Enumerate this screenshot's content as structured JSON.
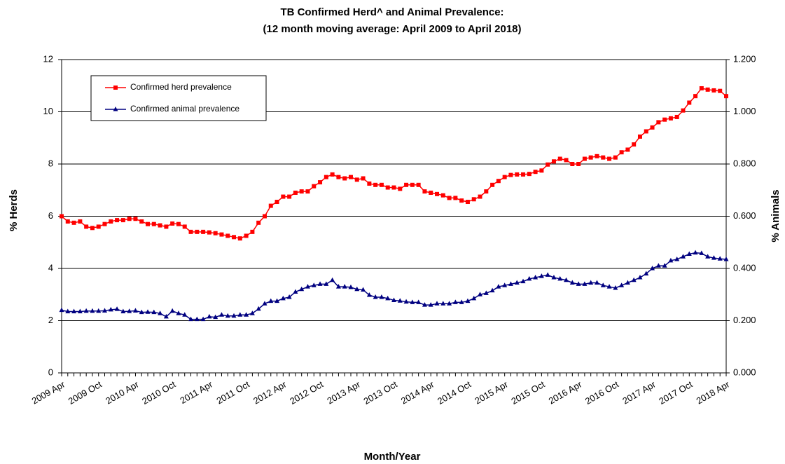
{
  "chart_data": {
    "type": "line",
    "title": "TB Confirmed Herd^ and Animal Prevalence:",
    "subtitle": "(12 month moving average: April 2009 to April 2018)",
    "x_label": "Month/Year",
    "y_label": "% Herds",
    "y2_label": "% Animals",
    "categories": [
      "2009 Apr",
      null,
      null,
      null,
      null,
      null,
      "2009 Oct",
      null,
      null,
      null,
      null,
      null,
      "2010 Apr",
      null,
      null,
      null,
      null,
      null,
      "2010 Oct",
      null,
      null,
      null,
      null,
      null,
      "2011 Apr",
      null,
      null,
      null,
      null,
      null,
      "2011 Oct",
      null,
      null,
      null,
      null,
      null,
      "2012 Apr",
      null,
      null,
      null,
      null,
      null,
      "2012 Oct",
      null,
      null,
      null,
      null,
      null,
      "2013 Apr",
      null,
      null,
      null,
      null,
      null,
      "2013 Oct",
      null,
      null,
      null,
      null,
      null,
      "2014 Apr",
      null,
      null,
      null,
      null,
      null,
      "2014 Oct",
      null,
      null,
      null,
      null,
      null,
      "2015 Apr",
      null,
      null,
      null,
      null,
      null,
      "2015 Oct",
      null,
      null,
      null,
      null,
      null,
      "2016 Apr",
      null,
      null,
      null,
      null,
      null,
      "2016 Oct",
      null,
      null,
      null,
      null,
      null,
      "2017 Apr",
      null,
      null,
      null,
      null,
      null,
      "2017 Oct",
      null,
      null,
      null,
      null,
      null,
      "2018 Apr"
    ],
    "series": [
      {
        "name": "Confirmed herd prevalence",
        "color": "#ff0000",
        "marker": "square",
        "values": [
          6.0,
          5.8,
          5.75,
          5.8,
          5.6,
          5.55,
          5.6,
          5.7,
          5.8,
          5.85,
          5.85,
          5.9,
          5.9,
          5.8,
          5.7,
          5.7,
          5.65,
          5.6,
          5.72,
          5.7,
          5.6,
          5.4,
          5.4,
          5.4,
          5.38,
          5.35,
          5.3,
          5.25,
          5.2,
          5.15,
          5.25,
          5.4,
          5.75,
          6.0,
          6.4,
          6.55,
          6.75,
          6.75,
          6.9,
          6.95,
          6.95,
          7.15,
          7.3,
          7.5,
          7.6,
          7.5,
          7.45,
          7.5,
          7.4,
          7.45,
          7.25,
          7.2,
          7.2,
          7.1,
          7.1,
          7.05,
          7.2,
          7.2,
          7.2,
          6.95,
          6.9,
          6.85,
          6.8,
          6.7,
          6.7,
          6.6,
          6.55,
          6.65,
          6.75,
          6.95,
          7.2,
          7.35,
          7.5,
          7.58,
          7.6,
          7.6,
          7.62,
          7.7,
          7.75,
          7.98,
          8.1,
          8.2,
          8.15,
          8.0,
          8.0,
          8.2,
          8.25,
          8.3,
          8.25,
          8.2,
          8.25,
          8.45,
          8.55,
          8.75,
          9.05,
          9.25,
          9.4,
          9.6,
          9.7,
          9.75,
          9.8,
          10.05,
          10.35,
          10.6,
          10.9,
          10.85,
          10.82,
          10.8,
          10.6
        ]
      },
      {
        "name": "Confirmed animal prevalence",
        "color": "#000080",
        "marker": "triangle",
        "axis": "y2",
        "values": [
          0.24,
          0.235,
          0.235,
          0.235,
          0.237,
          0.237,
          0.237,
          0.238,
          0.242,
          0.244,
          0.235,
          0.236,
          0.238,
          0.232,
          0.233,
          0.232,
          0.228,
          0.215,
          0.237,
          0.228,
          0.222,
          0.205,
          0.205,
          0.205,
          0.215,
          0.213,
          0.222,
          0.218,
          0.218,
          0.222,
          0.222,
          0.228,
          0.245,
          0.265,
          0.275,
          0.275,
          0.285,
          0.29,
          0.31,
          0.32,
          0.33,
          0.335,
          0.34,
          0.34,
          0.355,
          0.33,
          0.33,
          0.328,
          0.32,
          0.318,
          0.298,
          0.29,
          0.29,
          0.285,
          0.278,
          0.276,
          0.272,
          0.27,
          0.27,
          0.26,
          0.26,
          0.265,
          0.265,
          0.265,
          0.27,
          0.27,
          0.275,
          0.285,
          0.3,
          0.305,
          0.315,
          0.33,
          0.335,
          0.34,
          0.345,
          0.35,
          0.36,
          0.365,
          0.37,
          0.375,
          0.365,
          0.36,
          0.355,
          0.345,
          0.34,
          0.34,
          0.345,
          0.345,
          0.335,
          0.33,
          0.325,
          0.335,
          0.345,
          0.355,
          0.365,
          0.38,
          0.4,
          0.41,
          0.41,
          0.43,
          0.435,
          0.445,
          0.455,
          0.46,
          0.458,
          0.445,
          0.44,
          0.437,
          0.435
        ]
      }
    ],
    "ylim": [
      0,
      12
    ],
    "yticks": [
      0,
      2,
      4,
      6,
      8,
      10,
      12
    ],
    "y2lim": [
      0,
      1.2
    ],
    "y2ticks": [
      {
        "value": 0,
        "label": "0.000"
      },
      {
        "value": 0.2,
        "label": "0.200"
      },
      {
        "value": 0.4,
        "label": "0.400"
      },
      {
        "value": 0.6,
        "label": "0.600"
      },
      {
        "value": 0.8,
        "label": "0.800"
      },
      {
        "value": 1.0,
        "label": "1.000"
      },
      {
        "value": 1.2,
        "label": "1.200"
      }
    ],
    "grid": true,
    "legend": "upper left"
  }
}
